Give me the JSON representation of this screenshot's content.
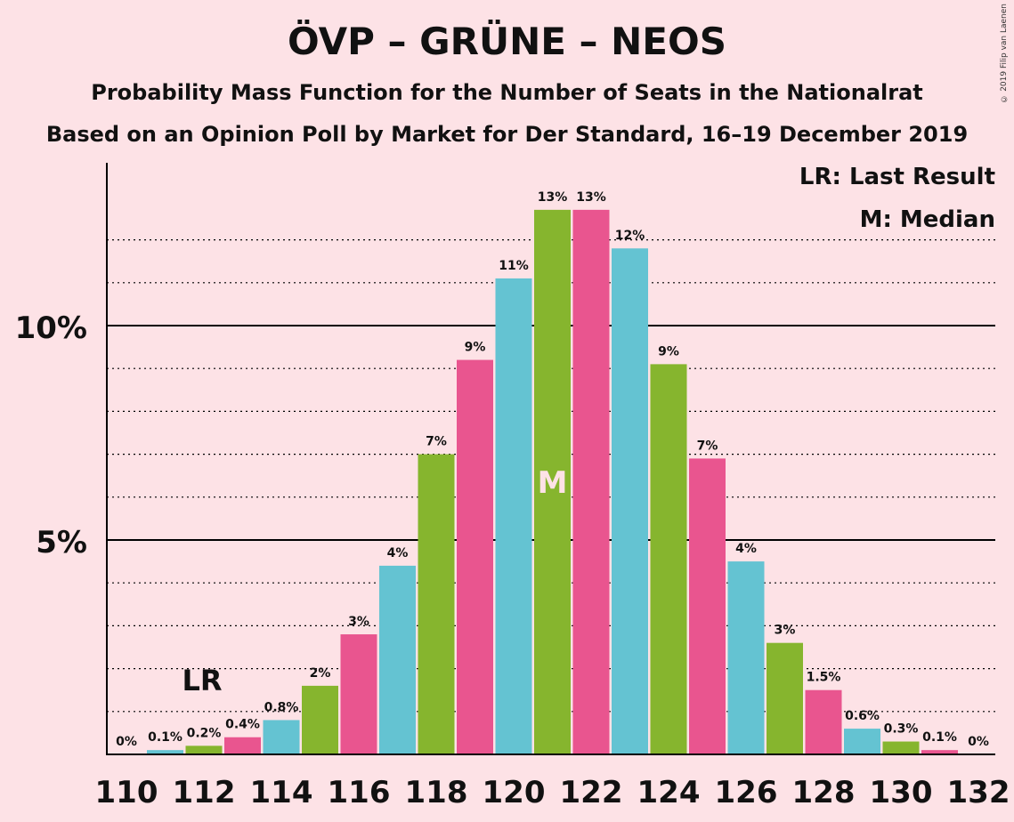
{
  "title": "ÖVP – GRÜNE – NEOS",
  "subtitle1": "Probability Mass Function for the Number of Seats in the Nationalrat",
  "subtitle2": "Based on an Opinion Poll by Market for Der Standard, 16–19 December 2019",
  "copyright": "© 2019 Filip van Laenen",
  "legend": {
    "lr": "LR: Last Result",
    "median": "M: Median"
  },
  "markers": {
    "lr_label": "LR",
    "median_label": "M",
    "last_result_seat": 112,
    "median_seat": 121
  },
  "colors": {
    "background": "#fde2e6",
    "green": "#86b52e",
    "pink": "#e9558f",
    "cyan": "#64c3d2"
  },
  "chart_data": {
    "type": "bar",
    "x": [
      110,
      111,
      112,
      113,
      114,
      115,
      116,
      117,
      118,
      119,
      120,
      121,
      122,
      123,
      124,
      125,
      126,
      127,
      128,
      129,
      130,
      131,
      132
    ],
    "values": [
      0,
      0.1,
      0.2,
      0.4,
      0.8,
      1.6,
      2.8,
      4.4,
      7.0,
      9.2,
      11.1,
      12.7,
      12.7,
      11.8,
      9.1,
      6.9,
      4.5,
      2.6,
      1.5,
      0.6,
      0.3,
      0.1,
      0
    ],
    "labels": [
      "0%",
      "0.1%",
      "0.2%",
      "0.4%",
      "0.8%",
      "2%",
      "3%",
      "4%",
      "7%",
      "9%",
      "11%",
      "13%",
      "13%",
      "12%",
      "9%",
      "7%",
      "4%",
      "3%",
      "1.5%",
      "0.6%",
      "0.3%",
      "0.1%",
      "0%"
    ],
    "bar_colors": [
      "cyan",
      "cyan",
      "green",
      "pink",
      "cyan",
      "green",
      "pink",
      "cyan",
      "green",
      "pink",
      "cyan",
      "green",
      "pink",
      "cyan",
      "green",
      "pink",
      "cyan",
      "green",
      "pink",
      "cyan",
      "green",
      "pink",
      "cyan"
    ],
    "x_tick_labels": [
      "110",
      "112",
      "114",
      "116",
      "118",
      "120",
      "122",
      "124",
      "126",
      "128",
      "130",
      "132"
    ],
    "y_tick_labels": [
      {
        "value": 5,
        "label": "5%"
      },
      {
        "value": 10,
        "label": "10%"
      }
    ],
    "ylim": [
      0,
      13.8
    ],
    "grid": "dotted every 1%, solid at 5% and 10%"
  }
}
